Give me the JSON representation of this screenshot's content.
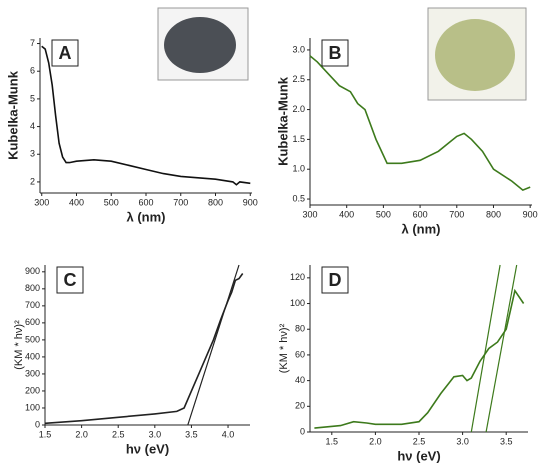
{
  "chart_data": [
    {
      "type": "line",
      "label": "A",
      "xlabel": "λ (nm)",
      "ylabel": "Kubelka-Munk",
      "xlim": [
        295,
        905
      ],
      "ylim": [
        1.6,
        7.2
      ],
      "xticks": [
        300,
        400,
        500,
        600,
        700,
        800,
        900
      ],
      "yticks": [
        2,
        3,
        4,
        5,
        6,
        7
      ],
      "series": [
        {
          "color": "#111111",
          "x": [
            300,
            310,
            320,
            330,
            340,
            350,
            360,
            370,
            380,
            400,
            450,
            500,
            550,
            600,
            650,
            700,
            750,
            800,
            850,
            860,
            870,
            900
          ],
          "values": [
            6.9,
            6.8,
            6.3,
            5.5,
            4.4,
            3.4,
            2.9,
            2.7,
            2.7,
            2.75,
            2.8,
            2.75,
            2.6,
            2.45,
            2.3,
            2.2,
            2.15,
            2.1,
            2.0,
            1.9,
            2.0,
            1.95
          ]
        }
      ]
    },
    {
      "type": "line",
      "label": "B",
      "xlabel": "λ (nm)",
      "ylabel": "Kubelka-Munk",
      "xlim": [
        300,
        905
      ],
      "ylim": [
        0.4,
        3.2
      ],
      "xticks": [
        300,
        400,
        500,
        600,
        700,
        800,
        900
      ],
      "yticks": [
        {
          "value": 0.5,
          "label": "0.5"
        },
        {
          "value": 1,
          "label": "1.0"
        },
        {
          "value": 1.5,
          "label": "1.5"
        },
        {
          "value": 2,
          "label": "2.0"
        },
        {
          "value": 2.5,
          "label": "2.5"
        },
        {
          "value": 3,
          "label": "3.0"
        }
      ],
      "series": [
        {
          "color": "#3d7a1c",
          "x": [
            300,
            320,
            350,
            380,
            410,
            430,
            450,
            480,
            510,
            550,
            600,
            650,
            680,
            700,
            720,
            740,
            770,
            800,
            850,
            880,
            900
          ],
          "values": [
            2.9,
            2.8,
            2.6,
            2.4,
            2.3,
            2.1,
            2.0,
            1.5,
            1.1,
            1.1,
            1.15,
            1.3,
            1.45,
            1.55,
            1.6,
            1.5,
            1.3,
            1.0,
            0.8,
            0.65,
            0.7
          ]
        }
      ]
    },
    {
      "type": "line",
      "label": "C",
      "xlabel": "hν (eV)",
      "ylabel": "(KM * hν)²",
      "xlim": [
        1.5,
        4.3
      ],
      "ylim": [
        0,
        940
      ],
      "xticks": [
        {
          "value": 1.5,
          "label": "1.5"
        },
        {
          "value": 2,
          "label": "2.0"
        },
        {
          "value": 2.5,
          "label": "2.5"
        },
        {
          "value": 3,
          "label": "3.0"
        },
        {
          "value": 3.5,
          "label": "3.5"
        },
        {
          "value": 4,
          "label": "4.0"
        }
      ],
      "yticks": [
        0,
        100,
        200,
        300,
        400,
        500,
        600,
        700,
        800,
        900
      ],
      "series": [
        {
          "color": "#222222",
          "x": [
            1.5,
            2.0,
            2.5,
            3.0,
            3.3,
            3.4,
            3.6,
            3.8,
            3.9,
            4.0,
            4.05,
            4.1,
            4.15,
            4.2
          ],
          "values": [
            10,
            25,
            45,
            65,
            80,
            100,
            300,
            500,
            620,
            730,
            780,
            850,
            860,
            890
          ]
        },
        {
          "color": "#222222",
          "x": [
            3.45,
            4.15
          ],
          "values": [
            0,
            940
          ]
        }
      ]
    },
    {
      "type": "line",
      "label": "D",
      "xlabel": "hν (eV)",
      "ylabel": "(KM * hν)²",
      "xlim": [
        1.25,
        3.75
      ],
      "ylim": [
        0,
        130
      ],
      "xticks": [
        {
          "value": 1.5,
          "label": "1.5"
        },
        {
          "value": 2,
          "label": "2.0"
        },
        {
          "value": 2.5,
          "label": "2.5"
        },
        {
          "value": 3,
          "label": "3.0"
        },
        {
          "value": 3.5,
          "label": "3.5"
        }
      ],
      "yticks": [
        0,
        20,
        40,
        60,
        80,
        100,
        120
      ],
      "series": [
        {
          "color": "#3d7a1c",
          "x": [
            1.3,
            1.6,
            1.75,
            1.9,
            2.0,
            2.3,
            2.5,
            2.6,
            2.75,
            2.9,
            3.0,
            3.05,
            3.1,
            3.2,
            3.3,
            3.4,
            3.5,
            3.6,
            3.7
          ],
          "values": [
            3,
            5,
            8,
            7,
            6,
            6,
            8,
            15,
            30,
            43,
            44,
            40,
            42,
            55,
            65,
            70,
            80,
            110,
            100
          ]
        },
        {
          "color": "#3d7a1c",
          "x": [
            3.1,
            3.43
          ],
          "values": [
            0,
            130
          ]
        },
        {
          "color": "#3d7a1c",
          "x": [
            3.27,
            3.62
          ],
          "values": [
            0,
            130
          ]
        }
      ]
    }
  ]
}
